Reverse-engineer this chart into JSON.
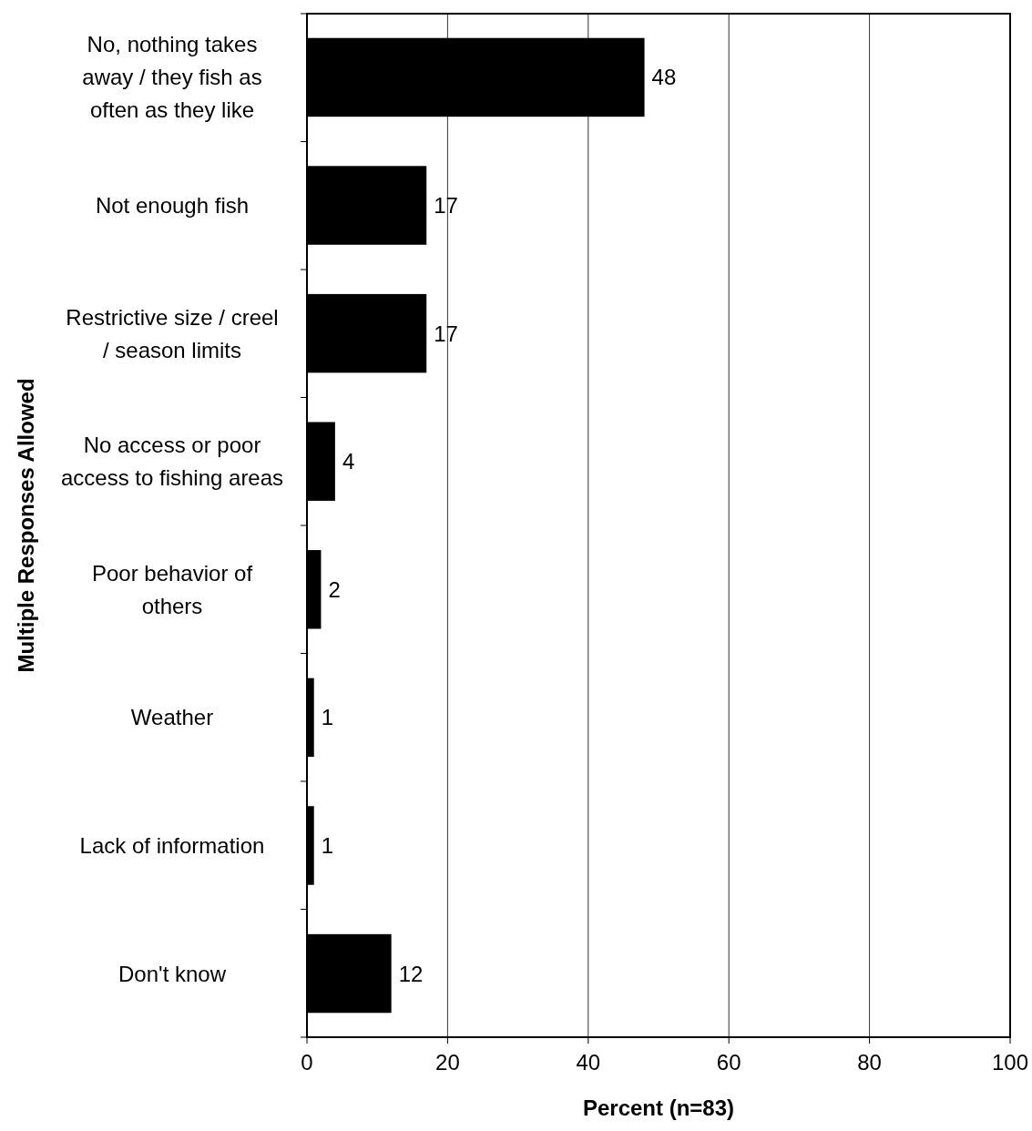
{
  "chart_data": {
    "type": "bar",
    "orientation": "horizontal",
    "xlabel": "Percent (n=83)",
    "ylabel": "Multiple Responses Allowed",
    "categories": [
      "No, nothing takes away / they fish as often as they like",
      "Not enough fish",
      "Restrictive size / creel / season limits",
      "No access or poor access to fishing areas",
      "Poor behavior of others",
      "Weather",
      "Lack of information",
      "Don't know"
    ],
    "values": [
      48,
      17,
      17,
      4,
      2,
      1,
      1,
      12
    ],
    "color": "#000000",
    "xlim": [
      0,
      100
    ],
    "xticks": [
      0,
      20,
      40,
      60,
      80,
      100
    ],
    "grid": "x",
    "data_labels": true
  }
}
